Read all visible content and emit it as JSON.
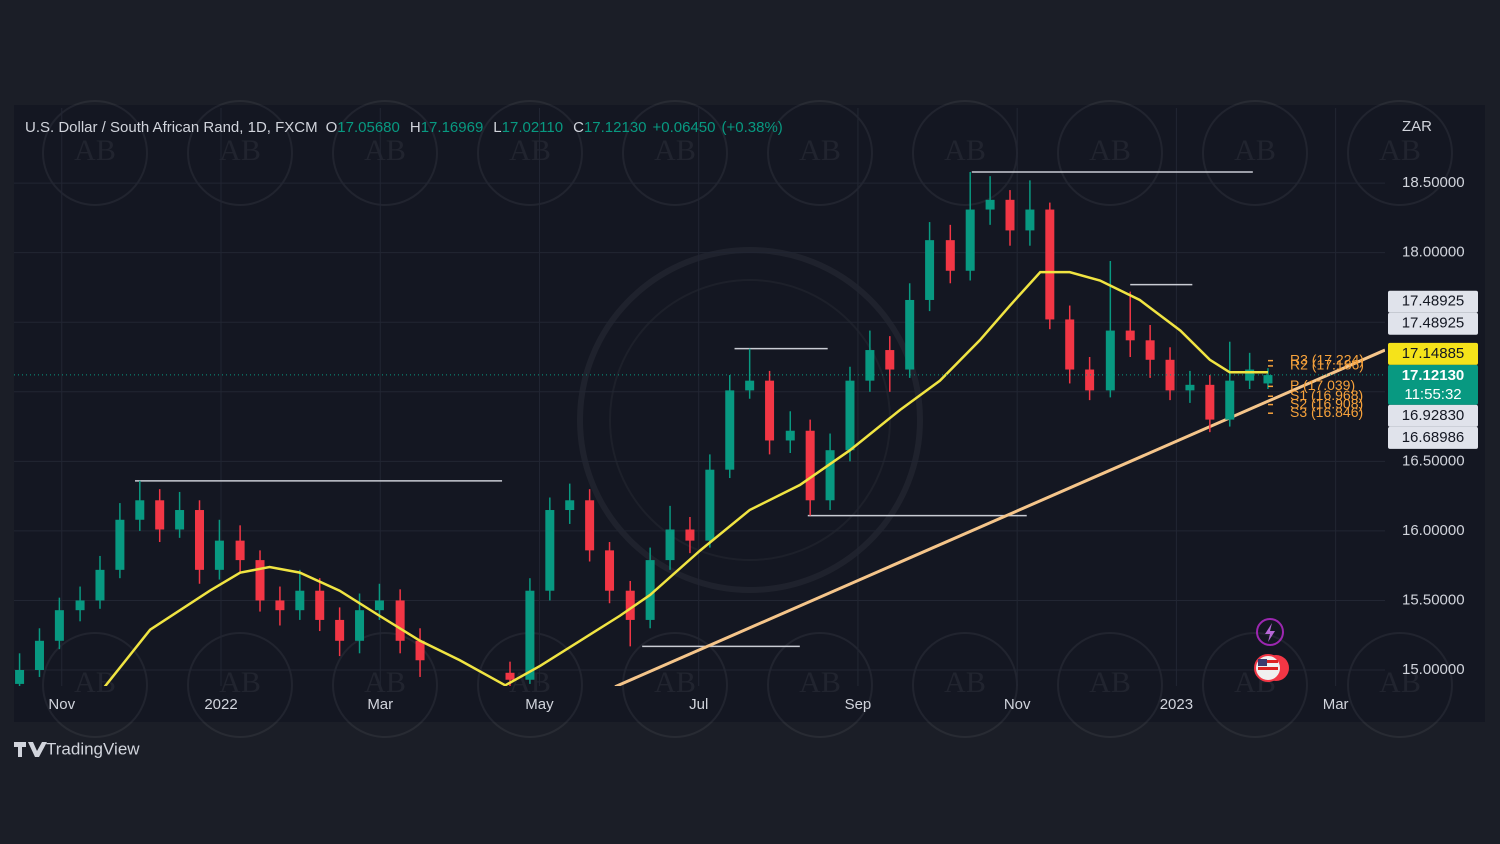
{
  "chart_data": {
    "type": "candlestick",
    "title": "U.S. Dollar / South African Rand, 1D, FXCM",
    "legend_ohlc": [
      {
        "key": "O",
        "value": 17.0568,
        "label": "17.05680"
      },
      {
        "key": "H",
        "value": 17.16969,
        "label": "17.16969"
      },
      {
        "key": "L",
        "value": 17.0211,
        "label": "17.02110"
      },
      {
        "key": "C",
        "value": 17.1213,
        "label": "17.12130"
      }
    ],
    "change": [
      {
        "value": 0.0645,
        "label": "+0.06450"
      },
      {
        "value": 0.38,
        "label": "(+0.38%)"
      }
    ],
    "currency": "ZAR",
    "up_color": "#089981",
    "down_color": "#f23645",
    "grid": true,
    "xlim": [
      -0.6,
      16.62
    ],
    "xticks": [
      {
        "value": 0,
        "label": "Nov"
      },
      {
        "value": 2,
        "label": "2022"
      },
      {
        "value": 4,
        "label": "Mar"
      },
      {
        "value": 6,
        "label": "May"
      },
      {
        "value": 8,
        "label": "Jul"
      },
      {
        "value": 10,
        "label": "Sep"
      },
      {
        "value": 12,
        "label": "Nov"
      },
      {
        "value": 14,
        "label": "2023"
      },
      {
        "value": 16,
        "label": "Mar"
      }
    ],
    "ylim": [
      14.885,
      19.04
    ],
    "yticks": [
      {
        "value": 15,
        "label": "15.00000"
      },
      {
        "value": 15.5,
        "label": "15.50000"
      },
      {
        "value": 16,
        "label": "16.00000"
      },
      {
        "value": 16.5,
        "label": "16.50000"
      },
      {
        "value": 17,
        "label": "17.00000"
      },
      {
        "value": 17.5,
        "label": "17.50000"
      },
      {
        "value": 18,
        "label": "18.00000"
      },
      {
        "value": 18.5,
        "label": "18.50000"
      }
    ],
    "x": [
      -0.53,
      -0.28,
      -0.03,
      0.23,
      0.48,
      0.73,
      0.98,
      1.23,
      1.48,
      1.73,
      1.98,
      2.24,
      2.49,
      2.74,
      2.99,
      3.24,
      3.49,
      3.74,
      3.99,
      4.25,
      4.5,
      5.63,
      5.88,
      6.13,
      6.38,
      6.63,
      6.88,
      7.14,
      7.39,
      7.64,
      7.89,
      8.14,
      8.39,
      8.64,
      8.89,
      9.15,
      9.4,
      9.65,
      9.9,
      10.15,
      10.4,
      10.65,
      10.9,
      11.16,
      11.41,
      11.66,
      11.91,
      12.16,
      12.41,
      12.66,
      12.91,
      13.17,
      13.42,
      13.67,
      13.92,
      14.17,
      14.42,
      14.67,
      14.92,
      15.15
    ],
    "open": [
      14.9,
      15.0,
      15.21,
      15.43,
      15.5,
      15.72,
      16.08,
      16.22,
      16.01,
      16.15,
      15.72,
      15.93,
      15.79,
      15.5,
      15.43,
      15.57,
      15.36,
      15.21,
      15.43,
      15.5,
      15.21,
      14.98,
      14.93,
      15.57,
      16.15,
      16.22,
      15.86,
      15.57,
      15.36,
      15.79,
      16.01,
      15.93,
      16.44,
      17.01,
      17.08,
      16.65,
      16.72,
      16.22,
      16.58,
      17.08,
      17.3,
      17.16,
      17.66,
      18.09,
      17.87,
      18.31,
      18.38,
      18.16,
      18.31,
      17.52,
      17.16,
      17.01,
      17.44,
      17.37,
      17.23,
      17.01,
      17.05,
      16.8,
      17.08,
      17.06
    ],
    "high": [
      15.12,
      15.3,
      15.52,
      15.6,
      15.82,
      16.2,
      16.36,
      16.3,
      16.28,
      16.22,
      16.08,
      16.04,
      15.86,
      15.6,
      15.72,
      15.66,
      15.45,
      15.55,
      15.62,
      15.58,
      15.3,
      15.06,
      15.66,
      16.24,
      16.34,
      16.3,
      15.92,
      15.64,
      15.88,
      16.18,
      16.1,
      16.55,
      17.12,
      17.31,
      17.15,
      16.86,
      16.8,
      16.7,
      17.18,
      17.44,
      17.4,
      17.78,
      18.22,
      18.2,
      18.58,
      18.55,
      18.45,
      18.52,
      18.36,
      17.62,
      17.25,
      17.94,
      17.72,
      17.48,
      17.32,
      17.15,
      17.12,
      17.36,
      17.28,
      17.17
    ],
    "low": [
      14.85,
      14.95,
      15.15,
      15.35,
      15.44,
      15.66,
      16.0,
      15.92,
      15.95,
      15.62,
      15.65,
      15.7,
      15.42,
      15.32,
      15.36,
      15.28,
      15.1,
      15.12,
      15.36,
      15.12,
      14.95,
      14.86,
      14.9,
      15.5,
      16.05,
      15.78,
      15.48,
      15.17,
      15.3,
      15.72,
      15.84,
      15.88,
      16.38,
      16.95,
      16.55,
      16.56,
      16.11,
      16.15,
      16.5,
      17.0,
      17.0,
      17.1,
      17.58,
      17.78,
      17.8,
      18.2,
      18.05,
      18.05,
      17.45,
      17.06,
      16.94,
      16.96,
      17.25,
      17.1,
      16.94,
      16.92,
      16.71,
      16.75,
      17.02,
      17.02
    ],
    "close": [
      15.0,
      15.21,
      15.43,
      15.5,
      15.72,
      16.08,
      16.22,
      16.01,
      16.15,
      15.72,
      15.93,
      15.79,
      15.5,
      15.43,
      15.57,
      15.36,
      15.21,
      15.43,
      15.5,
      15.21,
      15.07,
      14.93,
      15.57,
      16.15,
      16.22,
      15.86,
      15.57,
      15.36,
      15.79,
      16.01,
      15.93,
      16.44,
      17.01,
      17.08,
      16.65,
      16.72,
      16.22,
      16.58,
      17.08,
      17.3,
      17.16,
      17.66,
      18.09,
      17.87,
      18.31,
      18.38,
      18.16,
      18.31,
      17.52,
      17.16,
      17.01,
      17.44,
      17.37,
      17.23,
      17.01,
      17.05,
      16.8,
      17.08,
      17.16,
      17.12
    ],
    "moving_average": {
      "color": "#f0e442",
      "x": [
        0.54,
        1.11,
        1.86,
        2.24,
        2.61,
        2.99,
        3.49,
        3.99,
        4.5,
        5.0,
        5.57,
        6.01,
        6.51,
        7.01,
        7.39,
        8.02,
        8.64,
        9.27,
        9.9,
        10.53,
        11.03,
        11.53,
        11.91,
        12.29,
        12.66,
        13.04,
        13.54,
        14.05,
        14.42,
        14.67,
        15.15
      ],
      "values": [
        14.88,
        15.29,
        15.57,
        15.7,
        15.74,
        15.7,
        15.57,
        15.39,
        15.21,
        15.07,
        14.89,
        15.03,
        15.21,
        15.39,
        15.54,
        15.86,
        16.15,
        16.33,
        16.58,
        16.87,
        17.08,
        17.37,
        17.62,
        17.86,
        17.86,
        17.8,
        17.66,
        17.44,
        17.23,
        17.14,
        17.14
      ]
    },
    "trendline": {
      "color": "#f5c58a",
      "x": [
        6.95,
        16.62
      ],
      "values": [
        14.88,
        17.3
      ]
    },
    "levels": [
      {
        "value": 16.36,
        "x": [
          0.92,
          5.53
        ]
      },
      {
        "value": 18.58,
        "x": [
          11.43,
          14.96
        ]
      },
      {
        "value": 16.11,
        "x": [
          9.37,
          12.12
        ]
      },
      {
        "value": 15.17,
        "x": [
          7.29,
          9.27
        ]
      },
      {
        "value": 17.31,
        "x": [
          8.45,
          9.62
        ]
      },
      {
        "value": 17.77,
        "x": [
          13.42,
          14.2
        ]
      }
    ],
    "pivot_color": "#f7a23b",
    "pivots": [
      {
        "value": 17.224,
        "label": "R3 (17.224)"
      },
      {
        "value": 17.186,
        "label": "R2 (17.186)"
      },
      {
        "value": 17.039,
        "label": "P (17.039)"
      },
      {
        "value": 16.968,
        "label": "S1 (16.968)"
      },
      {
        "value": 16.908,
        "label": "S2 (16.908)"
      },
      {
        "value": 16.846,
        "label": "S3 (16.846)"
      }
    ],
    "price_labels": [
      {
        "value": 17.48925,
        "label": "17.48925",
        "bg": "#e0e3eb",
        "fg": "#131722"
      },
      {
        "value": 17.48925,
        "label": "17.48925",
        "bg": "#e0e3eb",
        "fg": "#131722"
      },
      {
        "value": 17.14885,
        "label": "17.14885",
        "bg": "#f5e31a",
        "fg": "#131722"
      },
      {
        "value": 17.1213,
        "label": "17.12130",
        "bg": "#089981",
        "fg": "#ffffff",
        "current": true
      },
      {
        "value": 16.9283,
        "label": "16.92830",
        "bg": "#e0e3eb",
        "fg": "#131722"
      },
      {
        "value": 16.68986,
        "label": "16.68986",
        "bg": "#e0e3eb",
        "fg": "#131722"
      }
    ],
    "countdown": "11:55:32",
    "watermark": "AB",
    "brand": "TradingView"
  }
}
